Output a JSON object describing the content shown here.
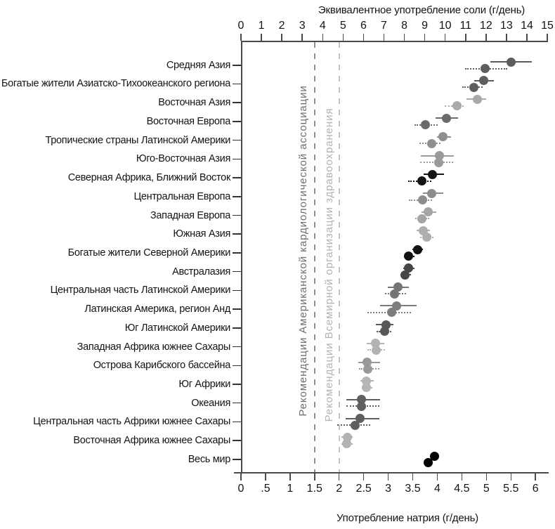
{
  "chart_data": {
    "type": "scatter",
    "description": "Dot plot with error bars: sodium consumption by region, two estimates per region (solid-bar point and dotted-bar point)",
    "top_axis": {
      "title": "Эквивалентное употребление соли (г/день)",
      "min": 0,
      "max": 15,
      "ticks": [
        0,
        1,
        2,
        3,
        4,
        5,
        6,
        7,
        8,
        9,
        10,
        11,
        12,
        13,
        14,
        15
      ]
    },
    "bottom_axis": {
      "title": "Употребление натрия (г/день)",
      "min": 0,
      "max": 6,
      "tick_values": [
        0,
        0.5,
        1,
        1.5,
        2,
        2.5,
        3,
        3.5,
        4,
        4.5,
        5,
        5.5,
        6
      ],
      "tick_labels": [
        "0",
        ".5",
        "1",
        "1.5",
        "2",
        "2.5",
        "3",
        "3.5",
        "4",
        "4.5",
        "5",
        "5.5",
        "6"
      ]
    },
    "reference_lines": [
      {
        "value": 1.5,
        "axis": "bottom",
        "style": "dashed",
        "label": "Рекомендации Американской кардиологической ассоциации",
        "line_color": "#8f8f8f",
        "label_color": "#6f6f6f"
      },
      {
        "value": 2.0,
        "axis": "bottom",
        "style": "dashed",
        "label": "Рекомендации Всемирной организации здравоохранения",
        "line_color": "#c6c6c6",
        "label_color": "#b3b3b3"
      }
    ],
    "point_styles": [
      {
        "id": "solid",
        "error_bar": "solid line"
      },
      {
        "id": "dotted",
        "error_bar": "dotted line"
      }
    ],
    "regions": [
      {
        "name": "Средняя Азия",
        "color": "#5d5d60",
        "solid": {
          "value": 5.5,
          "ci": [
            5.08,
            5.93
          ]
        },
        "dotted": {
          "value": 4.97,
          "ci": [
            4.57,
            5.42
          ]
        }
      },
      {
        "name": "Богатые жители Азиатско-Тихоокеанского региона",
        "color": "#5d5d60",
        "solid": {
          "value": 4.95,
          "ci": [
            4.75,
            5.15
          ]
        },
        "dotted": {
          "value": 4.74,
          "ci": [
            4.51,
            4.92
          ]
        }
      },
      {
        "name": "Восточная Азия",
        "color": "#a9a9a9",
        "solid": {
          "value": 4.81,
          "ci": [
            4.59,
            4.99
          ]
        },
        "dotted": {
          "value": 4.4,
          "ci": [
            4.15,
            4.54
          ]
        }
      },
      {
        "name": "Восточная Европа",
        "color": "#6b6b6b",
        "solid": {
          "value": 4.19,
          "ci": [
            3.96,
            4.42
          ]
        },
        "dotted": {
          "value": 3.76,
          "ci": [
            3.53,
            4.01
          ]
        }
      },
      {
        "name": "Тропические страны Латинской Америки",
        "color": "#8f8f8f",
        "solid": {
          "value": 4.11,
          "ci": [
            3.99,
            4.28
          ]
        },
        "dotted": {
          "value": 3.88,
          "ci": [
            3.63,
            4.06
          ]
        }
      },
      {
        "name": "Юго-Восточная Азия",
        "color": "#9a9a9a",
        "solid": {
          "value": 4.05,
          "ci": [
            3.66,
            4.33
          ]
        },
        "dotted": {
          "value": 4.03,
          "ci": [
            3.65,
            4.32
          ]
        }
      },
      {
        "name": "Северная Африка, Ближний Восток",
        "color": "#141414",
        "solid": {
          "value": 3.9,
          "ci": [
            3.72,
            4.14
          ]
        },
        "dotted": {
          "value": 3.69,
          "ci": [
            3.41,
            3.88
          ]
        }
      },
      {
        "name": "Центральная Европа",
        "color": "#8c8c8c",
        "solid": {
          "value": 3.89,
          "ci": [
            3.71,
            4.12
          ]
        },
        "dotted": {
          "value": 3.7,
          "ci": [
            3.42,
            3.89
          ]
        }
      },
      {
        "name": "Западная Европа",
        "color": "#a5a5a5",
        "solid": {
          "value": 3.82,
          "ci": [
            3.68,
            3.98
          ]
        },
        "dotted": {
          "value": 3.69,
          "ci": [
            3.55,
            3.83
          ]
        }
      },
      {
        "name": "Южная Азия",
        "color": "#aeaeae",
        "solid": {
          "value": 3.72,
          "ci": [
            3.58,
            3.85
          ]
        },
        "dotted": {
          "value": 3.79,
          "ci": [
            3.65,
            3.92
          ]
        }
      },
      {
        "name": "Богатые жители Северной Америки",
        "color": "#121212",
        "solid": {
          "value": 3.6,
          "ci": [
            3.49,
            3.7
          ]
        },
        "dotted": {
          "value": 3.42,
          "ci": [
            3.32,
            3.53
          ]
        }
      },
      {
        "name": "Австралазия",
        "color": "#464646",
        "solid": {
          "value": 3.42,
          "ci": [
            3.3,
            3.54
          ]
        },
        "dotted": {
          "value": 3.34,
          "ci": [
            3.25,
            3.46
          ]
        }
      },
      {
        "name": "Центральная часть Латинской Америки",
        "color": "#757575",
        "solid": {
          "value": 3.2,
          "ci": [
            2.99,
            3.42
          ]
        },
        "dotted": {
          "value": 3.13,
          "ci": [
            2.93,
            3.36
          ]
        }
      },
      {
        "name": "Латинская Америка, регион Анд",
        "color": "#7d7d7d",
        "solid": {
          "value": 3.17,
          "ci": [
            2.83,
            3.58
          ]
        },
        "dotted": {
          "value": 3.07,
          "ci": [
            2.57,
            3.46
          ]
        }
      },
      {
        "name": "Юг Латинской Америки",
        "color": "#585858",
        "solid": {
          "value": 2.95,
          "ci": [
            2.75,
            3.11
          ]
        },
        "dotted": {
          "value": 2.93,
          "ci": [
            2.76,
            3.06
          ]
        }
      },
      {
        "name": "Западная Африка южнее Сахары",
        "color": "#b2b2b2",
        "solid": {
          "value": 2.74,
          "ci": [
            2.56,
            2.92
          ]
        },
        "dotted": {
          "value": 2.75,
          "ci": [
            2.58,
            2.93
          ]
        }
      },
      {
        "name": "Острова Карибского бассейна",
        "color": "#999999",
        "solid": {
          "value": 2.57,
          "ci": [
            2.39,
            2.84
          ]
        },
        "dotted": {
          "value": 2.58,
          "ci": [
            2.41,
            2.82
          ]
        }
      },
      {
        "name": "Юг Африки",
        "color": "#b5b5b5",
        "solid": {
          "value": 2.56,
          "ci": [
            2.44,
            2.7
          ]
        },
        "dotted": {
          "value": 2.56,
          "ci": [
            2.46,
            2.68
          ]
        }
      },
      {
        "name": "Океания",
        "color": "#5f5f5f",
        "solid": {
          "value": 2.46,
          "ci": [
            2.15,
            2.84
          ]
        },
        "dotted": {
          "value": 2.46,
          "ci": [
            2.14,
            2.82
          ]
        }
      },
      {
        "name": "Центральная часть Африки южнее Сахары",
        "color": "#5f5f5f",
        "solid": {
          "value": 2.43,
          "ci": [
            2.13,
            2.82
          ]
        },
        "dotted": {
          "value": 2.32,
          "ci": [
            1.96,
            2.63
          ]
        }
      },
      {
        "name": "Восточная Африка южнее Сахары",
        "color": "#b2b2b2",
        "solid": {
          "value": 2.17,
          "ci": [
            2.05,
            2.28
          ]
        },
        "dotted": {
          "value": 2.16,
          "ci": [
            2.05,
            2.28
          ]
        }
      },
      {
        "name": "Весь мир",
        "color": "#000000",
        "solid": {
          "value": 3.94,
          "ci": [
            3.94,
            3.94
          ]
        },
        "dotted": {
          "value": 3.82,
          "ci": [
            3.82,
            3.82
          ]
        }
      }
    ]
  }
}
